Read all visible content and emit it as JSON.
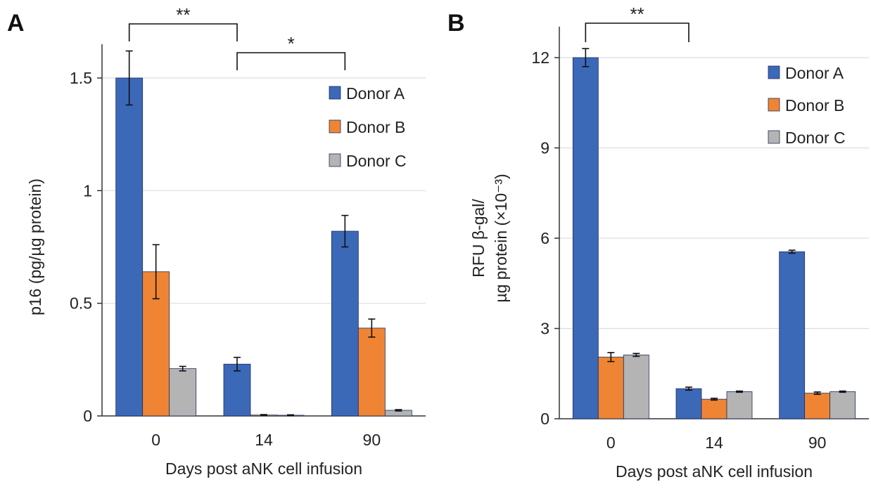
{
  "figure": {
    "panels": [
      "A",
      "B"
    ]
  },
  "colors": {
    "Donor A": "#3c68b8",
    "Donor B": "#ef8534",
    "Donor C": "#b4b4b4",
    "bar_edge": "#1f2f5a",
    "grid": "#d9dde6",
    "axis": "#333333"
  },
  "chart_data": [
    {
      "type": "bar",
      "panel": "A",
      "categories": [
        "0",
        "14",
        "90"
      ],
      "xlabel": "Days post aNK cell infusion",
      "ylabel": "p16 (pg/µg protein)",
      "ylim": [
        0,
        1.5
      ],
      "yticks": [
        0,
        0.5,
        1,
        1.5
      ],
      "ytick_labels": [
        "0",
        "0.5",
        "1",
        "1.5"
      ],
      "grid": true,
      "legend": "top-right",
      "series": [
        {
          "name": "Donor A",
          "values": [
            1.5,
            0.23,
            0.82
          ],
          "errors": [
            0.12,
            0.03,
            0.07
          ]
        },
        {
          "name": "Donor B",
          "values": [
            0.64,
            0.004,
            0.39
          ],
          "errors": [
            0.12,
            0.002,
            0.04
          ]
        },
        {
          "name": "Donor C",
          "values": [
            0.21,
            0.003,
            0.025
          ],
          "errors": [
            0.01,
            0.002,
            0.003
          ]
        }
      ],
      "significance": [
        {
          "from": 0,
          "to": 1,
          "label": "**"
        },
        {
          "from": 1,
          "to": 2,
          "label": "*"
        }
      ]
    },
    {
      "type": "bar",
      "panel": "B",
      "categories": [
        "0",
        "14",
        "90"
      ],
      "xlabel": "Days post aNK cell infusion",
      "ylabel": [
        "RFU β-gal/",
        "µg protein (×10⁻³)"
      ],
      "ylim": [
        0,
        12
      ],
      "yticks": [
        0,
        3,
        6,
        9,
        12
      ],
      "ytick_labels": [
        "0",
        "3",
        "6",
        "9",
        "12"
      ],
      "grid": true,
      "legend": "top-right",
      "series": [
        {
          "name": "Donor A",
          "values": [
            12.0,
            1.0,
            5.55
          ],
          "errors": [
            0.3,
            0.05,
            0.05
          ]
        },
        {
          "name": "Donor B",
          "values": [
            2.05,
            0.65,
            0.85
          ],
          "errors": [
            0.15,
            0.03,
            0.04
          ]
        },
        {
          "name": "Donor C",
          "values": [
            2.12,
            0.9,
            0.9
          ],
          "errors": [
            0.05,
            0.02,
            0.02
          ]
        }
      ],
      "significance": [
        {
          "from": 0,
          "to": 1,
          "label": "**"
        }
      ]
    }
  ]
}
